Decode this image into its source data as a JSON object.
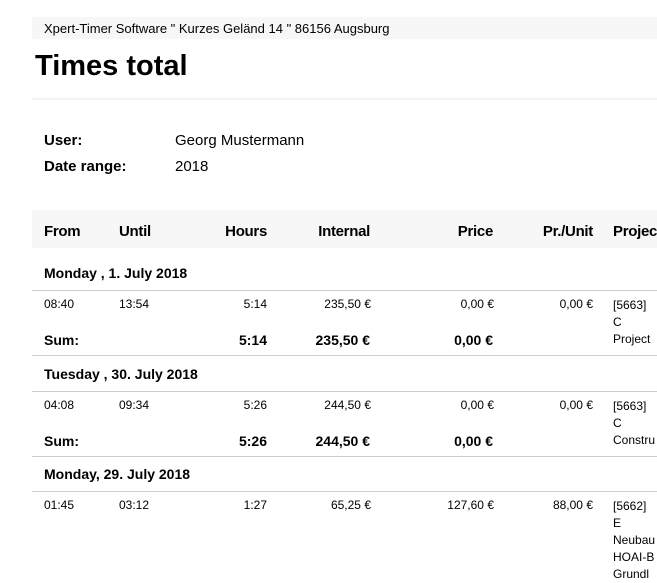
{
  "header": {
    "company_line": "Xpert-Timer Software  \" Kurzes Geländ 14  \" 86156 Augsburg"
  },
  "title": "Times total",
  "info": {
    "user_label": "User:",
    "user_value": "Georg Mustermann",
    "range_label": "Date range:",
    "range_value": "2018"
  },
  "table": {
    "columns": [
      "From",
      "Until",
      "Hours",
      "Internal",
      "Price",
      "Pr./Unit",
      "Project"
    ],
    "sum_label": "Sum:",
    "days": [
      {
        "heading": "Monday , 1. July 2018",
        "rows": [
          {
            "from": "08:40",
            "until": "13:54",
            "hours": "5:14",
            "internal": "235,50 €",
            "price": "0,00 €",
            "unit": "0,00 €",
            "project": [
              "[5663] C",
              "Project"
            ]
          }
        ],
        "sum": {
          "hours": "5:14",
          "internal": "235,50 €",
          "price": "0,00 €"
        }
      },
      {
        "heading": "Tuesday , 30. July  2018",
        "rows": [
          {
            "from": "04:08",
            "until": "09:34",
            "hours": "5:26",
            "internal": "244,50 €",
            "price": "0,00 €",
            "unit": "0,00 €",
            "project": [
              "[5663] C",
              "Constru"
            ]
          }
        ],
        "sum": {
          "hours": "5:26",
          "internal": "244,50 €",
          "price": "0,00 €"
        }
      },
      {
        "heading": "Monday, 29. July  2018",
        "rows": [
          {
            "from": "01:45",
            "until": "03:12",
            "hours": "1:27",
            "internal": "65,25 €",
            "price": "127,60 €",
            "unit": "88,00 €",
            "project": [
              "[5662] E",
              "Neubau",
              "HOAI-B",
              "Grundl"
            ]
          }
        ]
      }
    ]
  }
}
